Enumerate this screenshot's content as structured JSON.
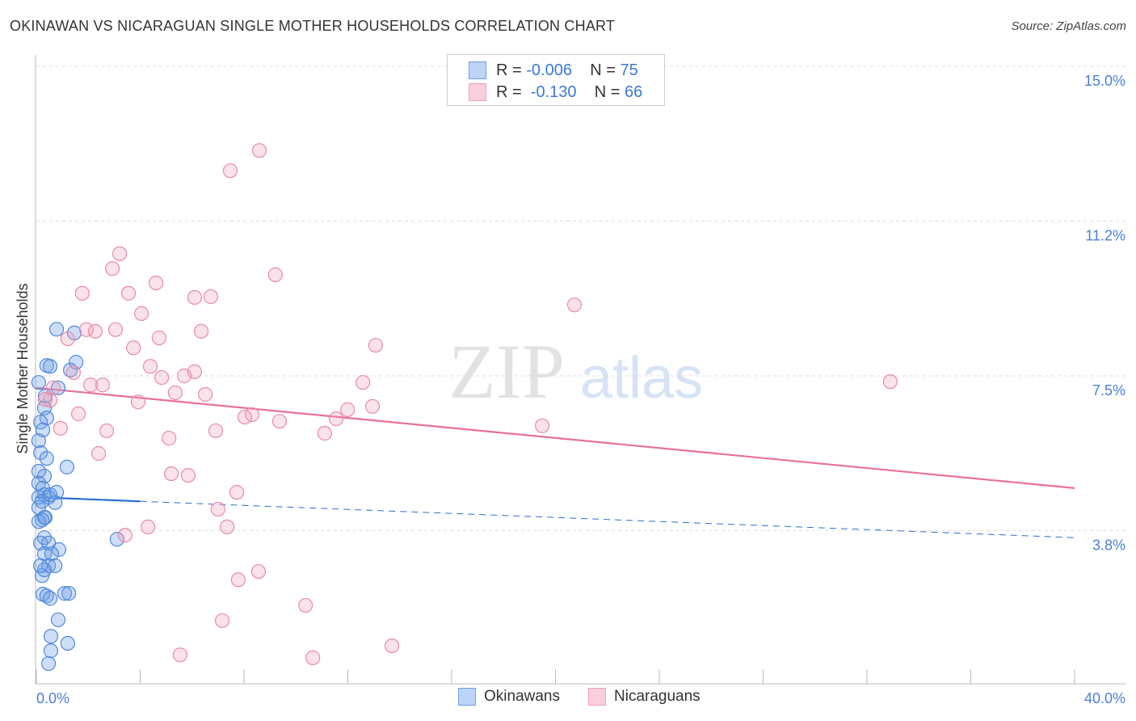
{
  "title": "OKINAWAN VS NICARAGUAN SINGLE MOTHER HOUSEHOLDS CORRELATION CHART",
  "source": "Source: ZipAtlas.com",
  "watermark": "ZIPatlas",
  "legend": {
    "rows": [
      {
        "r_label": "R =",
        "r": "-0.006",
        "n_label": "N =",
        "n": "75"
      },
      {
        "r_label": "R =",
        "r": "-0.130",
        "n_label": "N =",
        "n": "66"
      }
    ]
  },
  "colors": {
    "okinawans": "#6fa0e6",
    "nicaraguans": "#f0a0b8",
    "blue_line": "#2a6fd0",
    "pink_line": "#e8709a"
  },
  "chart_data": {
    "type": "scatter",
    "title": "OKINAWAN VS NICARAGUAN SINGLE MOTHER HOUSEHOLDS CORRELATION CHART",
    "xlabel": "",
    "ylabel": "Single Mother Households",
    "xlim": [
      0,
      40
    ],
    "ylim": [
      0,
      15
    ],
    "x_tick_labels": [
      "0.0%",
      "40.0%"
    ],
    "y_ticks": [
      {
        "v": 15,
        "label": "15.0%"
      },
      {
        "v": 11.25,
        "label": "11.2%"
      },
      {
        "v": 7.5,
        "label": "7.5%"
      },
      {
        "v": 3.75,
        "label": "3.8%"
      }
    ],
    "legend_placement": "bottom",
    "series": [
      {
        "name": "Okinawans",
        "trend": [
          [
            0,
            4.56
          ],
          [
            4,
            4.46
          ],
          [
            40,
            3.58
          ]
        ],
        "points": [
          [
            0.78,
            8.63
          ],
          [
            1.46,
            8.54
          ],
          [
            0.4,
            7.75
          ],
          [
            0.53,
            7.73
          ],
          [
            1.53,
            7.83
          ],
          [
            1.31,
            7.64
          ],
          [
            0.84,
            7.21
          ],
          [
            0.34,
            7.01
          ],
          [
            0.31,
            6.72
          ],
          [
            0.4,
            6.48
          ],
          [
            0.16,
            6.38
          ],
          [
            0.25,
            6.19
          ],
          [
            0.09,
            5.93
          ],
          [
            0.16,
            5.64
          ],
          [
            0.4,
            5.5
          ],
          [
            1.18,
            5.29
          ],
          [
            0.31,
            5.07
          ],
          [
            0.09,
            4.9
          ],
          [
            0.25,
            4.78
          ],
          [
            0.78,
            4.68
          ],
          [
            0.31,
            4.62
          ],
          [
            0.47,
            4.56
          ],
          [
            0.72,
            4.43
          ],
          [
            0.09,
            4.31
          ],
          [
            0.31,
            4.07
          ],
          [
            0.22,
            4.01
          ],
          [
            0.09,
            3.97
          ],
          [
            0.31,
            3.58
          ],
          [
            0.16,
            3.45
          ],
          [
            0.47,
            3.45
          ],
          [
            0.87,
            3.29
          ],
          [
            0.31,
            3.19
          ],
          [
            0.59,
            3.19
          ],
          [
            0.47,
            2.9
          ],
          [
            0.72,
            2.9
          ],
          [
            0.22,
            2.66
          ],
          [
            0.31,
            2.8
          ],
          [
            0.25,
            2.21
          ],
          [
            0.4,
            2.17
          ],
          [
            0.53,
            2.11
          ],
          [
            1.09,
            2.23
          ],
          [
            1.25,
            2.23
          ],
          [
            0.84,
            1.59
          ],
          [
            0.56,
            1.19
          ],
          [
            1.21,
            1.02
          ],
          [
            0.56,
            0.84
          ],
          [
            0.47,
            0.53
          ],
          [
            3.11,
            3.54
          ],
          [
            0.09,
            7.34
          ],
          [
            0.09,
            4.56
          ],
          [
            0.22,
            4.46
          ],
          [
            0.53,
            4.62
          ],
          [
            0.09,
            5.19
          ],
          [
            0.34,
            4.07
          ],
          [
            0.16,
            2.9
          ]
        ]
      },
      {
        "name": "Nicaraguans",
        "trend": [
          [
            0,
            7.21
          ],
          [
            40,
            4.78
          ]
        ],
        "points": [
          [
            8.59,
            12.96
          ],
          [
            7.47,
            12.47
          ],
          [
            3.21,
            10.46
          ],
          [
            2.93,
            10.1
          ],
          [
            9.21,
            9.95
          ],
          [
            1.77,
            9.5
          ],
          [
            3.55,
            9.5
          ],
          [
            4.61,
            9.75
          ],
          [
            6.1,
            9.4
          ],
          [
            6.72,
            9.42
          ],
          [
            20.73,
            9.22
          ],
          [
            4.05,
            9.01
          ],
          [
            1.93,
            8.62
          ],
          [
            2.27,
            8.58
          ],
          [
            3.05,
            8.62
          ],
          [
            6.35,
            8.58
          ],
          [
            4.73,
            8.42
          ],
          [
            1.21,
            8.4
          ],
          [
            13.07,
            8.24
          ],
          [
            3.74,
            8.18
          ],
          [
            4.39,
            7.73
          ],
          [
            6.1,
            7.6
          ],
          [
            5.7,
            7.5
          ],
          [
            4.83,
            7.46
          ],
          [
            12.58,
            7.34
          ],
          [
            32.9,
            7.36
          ],
          [
            1.43,
            7.58
          ],
          [
            0.65,
            7.21
          ],
          [
            2.09,
            7.28
          ],
          [
            2.55,
            7.28
          ],
          [
            5.35,
            7.09
          ],
          [
            6.51,
            7.05
          ],
          [
            0.53,
            6.91
          ],
          [
            0.34,
            6.93
          ],
          [
            3.92,
            6.87
          ],
          [
            12.95,
            6.76
          ],
          [
            11.99,
            6.68
          ],
          [
            8.31,
            6.56
          ],
          [
            8.03,
            6.5
          ],
          [
            9.37,
            6.4
          ],
          [
            11.55,
            6.46
          ],
          [
            1.62,
            6.58
          ],
          [
            0.93,
            6.23
          ],
          [
            19.49,
            6.29
          ],
          [
            2.71,
            6.17
          ],
          [
            6.91,
            6.17
          ],
          [
            11.11,
            6.11
          ],
          [
            5.11,
            5.99
          ],
          [
            2.4,
            5.62
          ],
          [
            5.2,
            5.13
          ],
          [
            5.85,
            5.09
          ],
          [
            7.72,
            4.68
          ],
          [
            7.0,
            4.27
          ],
          [
            4.3,
            3.84
          ],
          [
            7.35,
            3.84
          ],
          [
            3.42,
            3.64
          ],
          [
            8.56,
            2.76
          ],
          [
            7.78,
            2.56
          ],
          [
            10.37,
            1.94
          ],
          [
            7.16,
            1.57
          ],
          [
            13.7,
            0.96
          ],
          [
            5.54,
            0.74
          ],
          [
            10.65,
            0.67
          ]
        ]
      }
    ]
  }
}
